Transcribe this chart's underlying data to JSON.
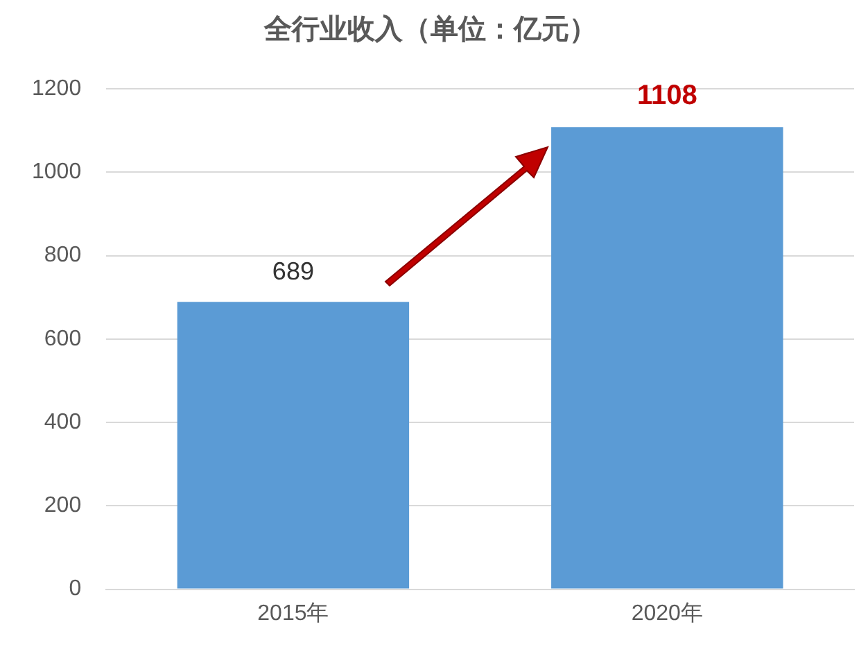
{
  "chart_data": {
    "type": "bar",
    "title": "全行业收入（单位：亿元）",
    "categories": [
      "2015年",
      "2020年"
    ],
    "values": [
      689,
      1108
    ],
    "color": "#5b9bd5",
    "value_labels": [
      "689",
      null
    ],
    "annotations": [
      {
        "text": "1108",
        "x": "2020年",
        "y": 1108
      }
    ],
    "ylim": [
      0,
      1200
    ],
    "yticks": [
      0,
      200,
      400,
      600,
      800,
      1000,
      1200
    ],
    "grid": "y",
    "legend": false
  }
}
